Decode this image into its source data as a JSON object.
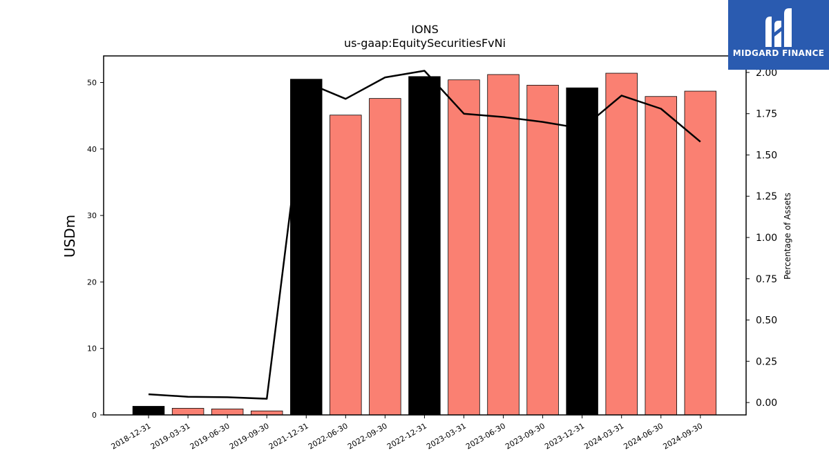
{
  "chart_data": {
    "type": "bar",
    "title": "IONS",
    "subtitle": "us-gaap:EquitySecuritiesFvNi",
    "ylabel": "USDm",
    "y2label": "Percentage of Assets",
    "ylim": [
      0,
      54
    ],
    "y2lim": [
      -0.075,
      2.1
    ],
    "yticks": [
      "0",
      "10",
      "20",
      "30",
      "40",
      "50"
    ],
    "y2ticks": [
      "0.00",
      "0.25",
      "0.50",
      "0.75",
      "1.00",
      "1.25",
      "1.50",
      "1.75",
      "2.00"
    ],
    "categories": [
      "2018-12-31",
      "2019-03-31",
      "2019-06-30",
      "2019-09-30",
      "2021-12-31",
      "2022-06-30",
      "2022-09-30",
      "2022-12-31",
      "2023-03-31",
      "2023-06-30",
      "2023-09-30",
      "2023-12-31",
      "2024-03-31",
      "2024-06-30",
      "2024-09-30"
    ],
    "series": [
      {
        "values": [
          1.3,
          1.0,
          0.9,
          0.6,
          50.5,
          45.1,
          47.6,
          50.9,
          50.4,
          51.2,
          49.6,
          49.2,
          51.4,
          47.9,
          48.7
        ],
        "colors": [
          "#000000",
          "#fa8072",
          "#fa8072",
          "#fa8072",
          "#000000",
          "#fa8072",
          "#fa8072",
          "#000000",
          "#fa8072",
          "#fa8072",
          "#fa8072",
          "#000000",
          "#fa8072",
          "#fa8072",
          "#fa8072"
        ]
      },
      {
        "type": "line",
        "axis": "right",
        "color": "#000000",
        "values": [
          0.05,
          0.035,
          0.032,
          0.023,
          1.94,
          1.84,
          1.97,
          2.01,
          1.75,
          1.73,
          1.7,
          1.66,
          1.86,
          1.78,
          1.58
        ]
      }
    ]
  },
  "logo": {
    "text": "MIDGARD FINANCE",
    "color": "#2a5bb0"
  }
}
